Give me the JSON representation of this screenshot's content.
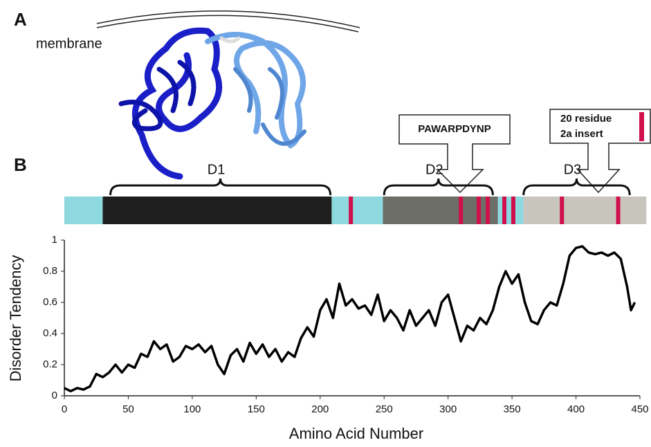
{
  "panels": {
    "a_label": "A",
    "membrane": "membrane",
    "b_label": "B"
  },
  "callouts": [
    {
      "text": "PAWARPDYNP"
    },
    {
      "lines": [
        "20 residue",
        "2a insert"
      ]
    }
  ],
  "chart_data": {
    "type": "line",
    "xlabel": "Amino Acid Number",
    "ylabel": "Disorder Tendency",
    "color": "#000000",
    "x": [
      0,
      5,
      10,
      15,
      20,
      25,
      30,
      35,
      40,
      45,
      50,
      55,
      60,
      65,
      70,
      75,
      80,
      85,
      90,
      95,
      100,
      105,
      110,
      115,
      120,
      125,
      130,
      135,
      140,
      145,
      150,
      155,
      160,
      165,
      170,
      175,
      180,
      185,
      190,
      195,
      200,
      205,
      210,
      215,
      220,
      225,
      230,
      235,
      240,
      245,
      250,
      255,
      260,
      265,
      270,
      275,
      280,
      285,
      290,
      295,
      300,
      305,
      310,
      315,
      320,
      325,
      330,
      335,
      340,
      345,
      350,
      355,
      360,
      365,
      370,
      375,
      380,
      385,
      390,
      395,
      400,
      405,
      410,
      415,
      420,
      425,
      430,
      435,
      440,
      443,
      446
    ],
    "values": [
      0.05,
      0.03,
      0.05,
      0.04,
      0.06,
      0.14,
      0.12,
      0.15,
      0.2,
      0.15,
      0.2,
      0.18,
      0.27,
      0.25,
      0.35,
      0.3,
      0.33,
      0.22,
      0.25,
      0.32,
      0.3,
      0.33,
      0.28,
      0.32,
      0.2,
      0.14,
      0.26,
      0.3,
      0.22,
      0.34,
      0.27,
      0.33,
      0.25,
      0.3,
      0.22,
      0.28,
      0.25,
      0.37,
      0.44,
      0.38,
      0.55,
      0.62,
      0.5,
      0.72,
      0.58,
      0.62,
      0.56,
      0.58,
      0.52,
      0.65,
      0.48,
      0.55,
      0.5,
      0.42,
      0.55,
      0.45,
      0.5,
      0.55,
      0.45,
      0.6,
      0.65,
      0.5,
      0.35,
      0.45,
      0.42,
      0.5,
      0.46,
      0.55,
      0.7,
      0.8,
      0.72,
      0.78,
      0.6,
      0.48,
      0.46,
      0.55,
      0.6,
      0.58,
      0.72,
      0.9,
      0.95,
      0.96,
      0.92,
      0.91,
      0.92,
      0.9,
      0.92,
      0.88,
      0.7,
      0.55,
      0.6
    ],
    "xlim": [
      0,
      450
    ],
    "ylim": [
      0,
      1
    ],
    "xticks": [
      0,
      50,
      100,
      150,
      200,
      250,
      300,
      350,
      400,
      450
    ],
    "yticks": [
      0,
      0.2,
      0.4,
      0.6,
      0.8,
      1
    ],
    "regions": [
      {
        "start": 0,
        "end": 30,
        "color": "#8ed8e0"
      },
      {
        "start": 30,
        "end": 209,
        "color": "#1e1e1e"
      },
      {
        "start": 209,
        "end": 249,
        "color": "#8ed8e0"
      },
      {
        "start": 249,
        "end": 339,
        "color": "#6e6e68"
      },
      {
        "start": 339,
        "end": 359,
        "color": "#8ed8e0"
      },
      {
        "start": 359,
        "end": 455,
        "color": "#c8c6bc"
      }
    ],
    "markers": [
      224,
      310,
      324,
      331,
      344,
      351,
      389,
      433
    ],
    "marker_color": "#d0104c",
    "domains": [
      {
        "label": "D1",
        "start": 36,
        "end": 208
      },
      {
        "label": "D2",
        "start": 250,
        "end": 335
      },
      {
        "label": "D3",
        "start": 359,
        "end": 442
      }
    ]
  }
}
